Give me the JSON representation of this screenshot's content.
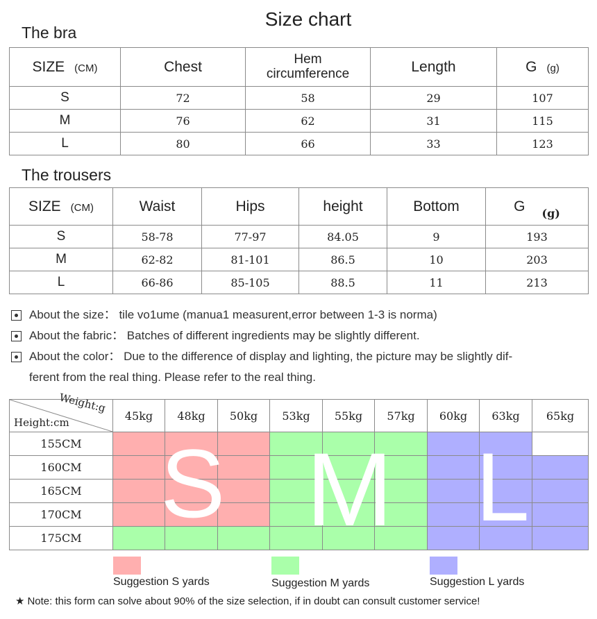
{
  "title": "Size chart",
  "bra": {
    "title": "The bra",
    "headers": {
      "size": "SIZE",
      "size_unit": "(CM)",
      "chest": "Chest",
      "hem_line1": "Hem",
      "hem_line2": "circumference",
      "length": "Length",
      "g": "G",
      "g_unit": "(g)"
    },
    "rows": [
      {
        "size": "S",
        "chest": "72",
        "hem": "58",
        "length": "29",
        "g": "107"
      },
      {
        "size": "M",
        "chest": "76",
        "hem": "62",
        "length": "31",
        "g": "115"
      },
      {
        "size": "L",
        "chest": "80",
        "hem": "66",
        "length": "33",
        "g": "123"
      }
    ]
  },
  "trousers": {
    "title": "The trousers",
    "headers": {
      "size": "SIZE",
      "size_unit": "(CM)",
      "waist": "Waist",
      "hips": "Hips",
      "height": "height",
      "bottom": "Bottom",
      "g": "G",
      "g_unit": "(g)"
    },
    "rows": [
      {
        "size": "S",
        "waist": "58-78",
        "hips": "77-97",
        "height": "84.05",
        "bottom": "9",
        "g": "193"
      },
      {
        "size": "M",
        "waist": "62-82",
        "hips": "81-101",
        "height": "86.5",
        "bottom": "10",
        "g": "203"
      },
      {
        "size": "L",
        "waist": "66-86",
        "hips": "85-105",
        "height": "88.5",
        "bottom": "11",
        "g": "213"
      }
    ]
  },
  "notes": [
    "About the size： tile vo1ume (manua1 measurent,error between 1-3 is norma)",
    "About the fabric： Batches of different ingredients may be slightly different.",
    "About the color： Due to the difference of display and lighting, the picture may be slightly dif-"
  ],
  "note_continuation": "ferent from the real thing. Please refer to the real thing.",
  "grid": {
    "weight_label": "Weight:g",
    "height_label": "Height:cm",
    "weights": [
      "45kg",
      "48kg",
      "50kg",
      "53kg",
      "55kg",
      "57kg",
      "60kg",
      "63kg",
      "65kg"
    ],
    "heights": [
      "155CM",
      "160CM",
      "165CM",
      "170CM",
      "175CM"
    ],
    "cells": [
      [
        "S",
        "S",
        "S",
        "M",
        "M",
        "M",
        "L",
        "L",
        ""
      ],
      [
        "S",
        "S",
        "S",
        "M",
        "M",
        "M",
        "L",
        "L",
        "L"
      ],
      [
        "S",
        "S",
        "S",
        "M",
        "M",
        "M",
        "L",
        "L",
        "L"
      ],
      [
        "S",
        "S",
        "S",
        "M",
        "M",
        "M",
        "L",
        "L",
        "L"
      ],
      [
        "M",
        "M",
        "M",
        "M",
        "M",
        "M",
        "L",
        "L",
        "L"
      ]
    ],
    "big_letters": {
      "s": "S",
      "m": "M",
      "l": "L"
    },
    "colors": {
      "S": "#ffafaf",
      "M": "#aaffaa",
      "L": "#afafff"
    }
  },
  "legend": {
    "s": "Suggestion S yards",
    "m": "Suggestion M yards",
    "l": "Suggestion L yards"
  },
  "footnote": {
    "star": "★",
    "text": "Note: this form can solve about 90% of the size selection, if in doubt can consult customer service!"
  }
}
